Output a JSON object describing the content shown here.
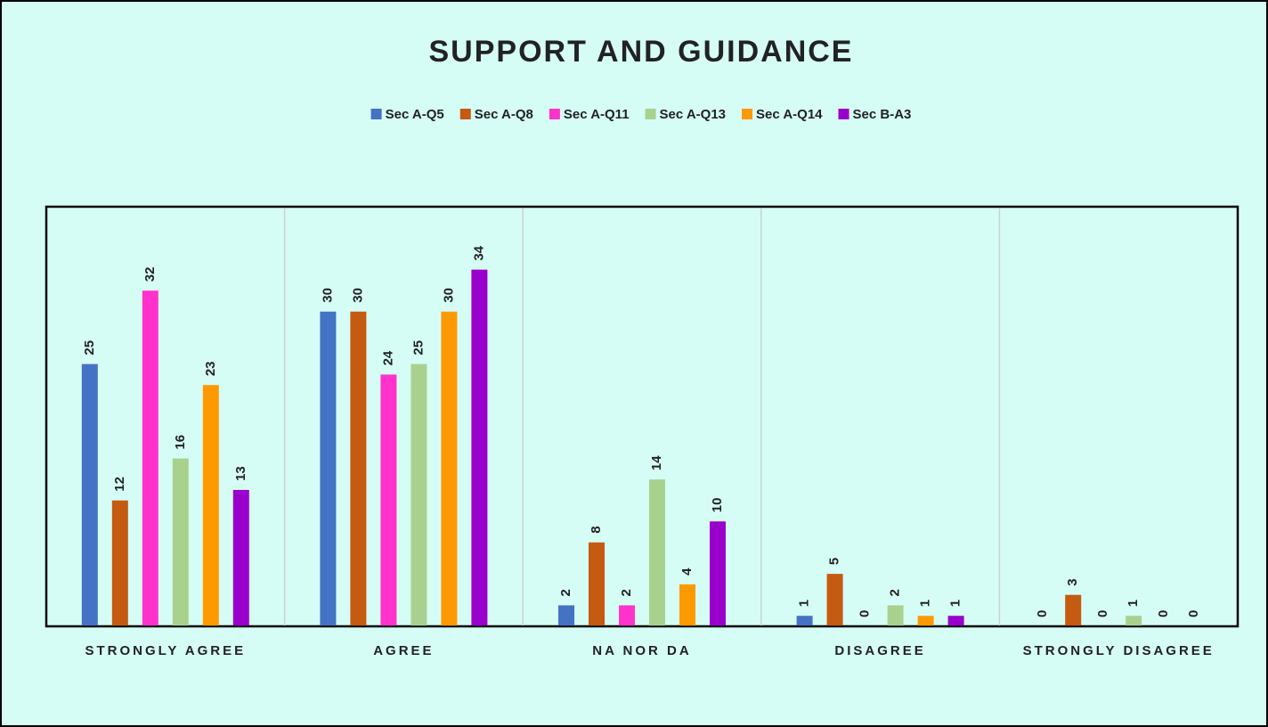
{
  "chart_data": {
    "type": "bar",
    "title": "SUPPORT AND GUIDANCE",
    "categories": [
      "STRONGLY AGREE",
      "AGREE",
      "NA NOR DA",
      "DISAGREE",
      "STRONGLY DISAGREE"
    ],
    "series": [
      {
        "name": "Sec A-Q5",
        "color": "#4472c4",
        "values": [
          25,
          30,
          2,
          1,
          0
        ]
      },
      {
        "name": "Sec A-Q8",
        "color": "#c55a11",
        "values": [
          12,
          30,
          8,
          5,
          3
        ]
      },
      {
        "name": "Sec A-Q11",
        "color": "#ff33cc",
        "values": [
          32,
          24,
          2,
          0,
          0
        ]
      },
      {
        "name": "Sec A-Q13",
        "color": "#a9d18e",
        "values": [
          16,
          25,
          14,
          2,
          1
        ]
      },
      {
        "name": "Sec A-Q14",
        "color": "#ff9900",
        "values": [
          23,
          30,
          4,
          1,
          0
        ]
      },
      {
        "name": "Sec B-A3",
        "color": "#9900cc",
        "values": [
          13,
          34,
          10,
          1,
          0
        ]
      }
    ],
    "ylim": [
      0,
      40
    ],
    "legend": "top"
  }
}
